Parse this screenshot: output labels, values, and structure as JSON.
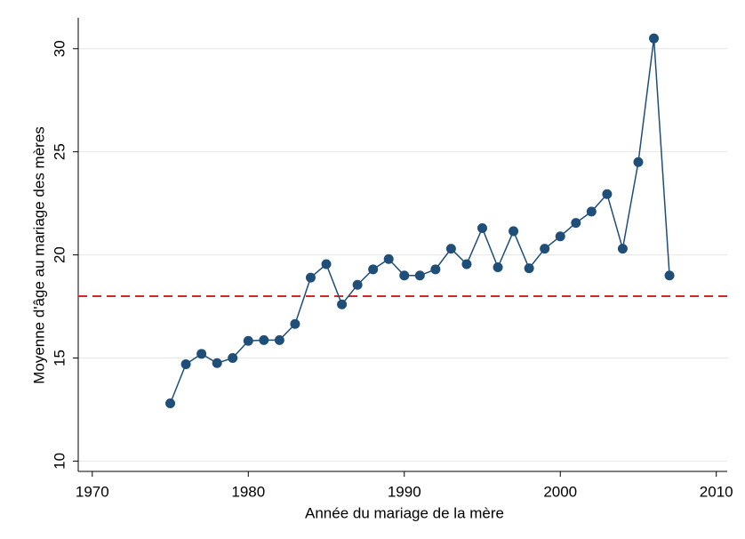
{
  "chart_data": {
    "type": "line",
    "xlabel": "Année du mariage de la mère",
    "ylabel": "Moyenne d'âge au mariage des mères",
    "x": [
      1975,
      1976,
      1977,
      1978,
      1979,
      1980,
      1981,
      1982,
      1983,
      1984,
      1985,
      1986,
      1987,
      1988,
      1989,
      1990,
      1991,
      1992,
      1993,
      1994,
      1995,
      1996,
      1997,
      1998,
      1999,
      2000,
      2001,
      2002,
      2003,
      2004,
      2005,
      2006,
      2007
    ],
    "series": [
      {
        "color": "#1f4e79",
        "values": [
          12.8,
          14.7,
          15.2,
          14.75,
          15.0,
          15.83,
          15.87,
          15.87,
          16.65,
          18.9,
          19.55,
          17.6,
          18.55,
          19.3,
          19.8,
          19.0,
          19.0,
          19.3,
          20.3,
          19.55,
          21.3,
          19.4,
          21.15,
          19.35,
          20.3,
          20.9,
          21.55,
          22.1,
          22.95,
          20.3,
          24.5,
          30.5,
          19.0
        ]
      }
    ],
    "reference_line": {
      "value": 18,
      "color": "#d62728"
    },
    "xlim": [
      1969.1,
      2010.7
    ],
    "xticks": [
      1970,
      1980,
      1990,
      2000,
      2010
    ],
    "ylim": [
      9.5,
      31.5
    ],
    "yticks": [
      10,
      15,
      20,
      25,
      30
    ],
    "grid": true
  }
}
